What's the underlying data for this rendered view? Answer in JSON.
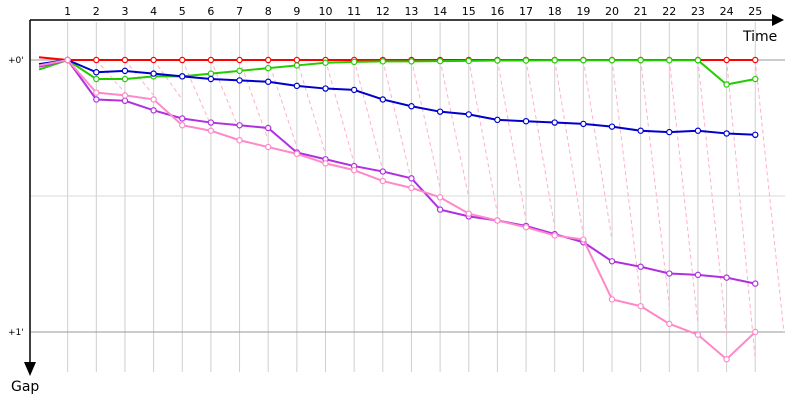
{
  "chart_data": {
    "type": "line",
    "title": "",
    "xlabel": "Time",
    "ylabel": "Gap",
    "xlim": [
      0,
      27
    ],
    "ylim": [
      -0.02,
      1.0
    ],
    "laps": [
      "1",
      "2",
      "3",
      "4",
      "5",
      "6",
      "7",
      "8",
      "9",
      "10",
      "11",
      "12",
      "13",
      "14",
      "15",
      "16",
      "17",
      "18",
      "19",
      "20",
      "21",
      "22",
      "23",
      "24",
      "25"
    ],
    "gap_ticks": [
      {
        "value": 0,
        "label": "+0'"
      },
      {
        "value": 1,
        "label": "+1'"
      }
    ],
    "grid_h": [
      0,
      0.5,
      1
    ],
    "series": [
      {
        "color": "#ff0000",
        "start": -0.01,
        "values": [
          0,
          0,
          0,
          0,
          0,
          0,
          0,
          0,
          0,
          0,
          0,
          0,
          0,
          0,
          0,
          0,
          0,
          0,
          0,
          0,
          0,
          0,
          0,
          0,
          0
        ]
      },
      {
        "color": "#22cc00",
        "start": 0.035,
        "values": [
          0,
          0.07,
          0.07,
          0.06,
          0.06,
          0.05,
          0.04,
          0.03,
          0.02,
          0.01,
          0.007,
          0.005,
          0.005,
          0.004,
          0.003,
          0.002,
          0.002,
          0.001,
          0.001,
          0.001,
          0.001,
          0.001,
          0.001,
          0.09,
          0.07
        ]
      },
      {
        "color": "#0000cc",
        "start": 0.015,
        "values": [
          0,
          0.045,
          0.04,
          0.05,
          0.06,
          0.07,
          0.075,
          0.08,
          0.095,
          0.105,
          0.11,
          0.145,
          0.17,
          0.19,
          0.2,
          0.22,
          0.225,
          0.23,
          0.235,
          0.245,
          0.26,
          0.265,
          0.26,
          0.27,
          0.275
        ]
      },
      {
        "color": "#b030e0",
        "start": 0.025,
        "values": [
          0,
          0.145,
          0.15,
          0.185,
          0.215,
          0.23,
          0.24,
          0.25,
          0.34,
          0.365,
          0.39,
          0.41,
          0.435,
          0.55,
          0.575,
          0.59,
          0.61,
          0.64,
          0.67,
          0.74,
          0.76,
          0.785,
          0.79,
          0.8,
          0.822
        ]
      },
      {
        "color": "#ff88c8",
        "start": 0.02,
        "values": [
          0,
          0.12,
          0.13,
          0.145,
          0.24,
          0.26,
          0.295,
          0.32,
          0.345,
          0.38,
          0.405,
          0.445,
          0.47,
          0.505,
          0.565,
          0.59,
          0.615,
          0.645,
          0.66,
          0.88,
          0.905,
          0.97,
          1.01,
          1.1,
          1.0
        ]
      }
    ]
  }
}
